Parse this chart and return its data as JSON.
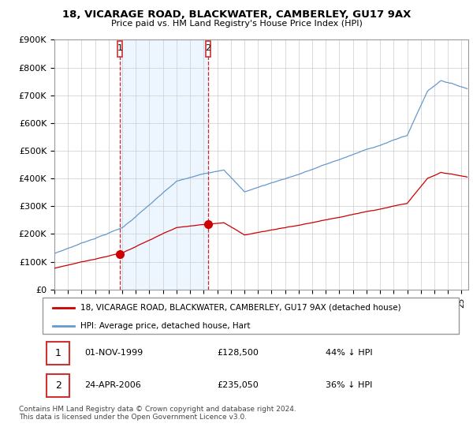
{
  "title": "18, VICARAGE ROAD, BLACKWATER, CAMBERLEY, GU17 9AX",
  "subtitle": "Price paid vs. HM Land Registry's House Price Index (HPI)",
  "ylim": [
    0,
    900000
  ],
  "yticks": [
    0,
    100000,
    200000,
    300000,
    400000,
    500000,
    600000,
    700000,
    800000,
    900000
  ],
  "xmin": 1995.0,
  "xmax": 2025.5,
  "sale1_x": 1999.833,
  "sale1_y": 128500,
  "sale2_x": 2006.31,
  "sale2_y": 235050,
  "legend_red": "18, VICARAGE ROAD, BLACKWATER, CAMBERLEY, GU17 9AX (detached house)",
  "legend_blue": "HPI: Average price, detached house, Hart",
  "footnote": "Contains HM Land Registry data © Crown copyright and database right 2024.\nThis data is licensed under the Open Government Licence v3.0.",
  "red_color": "#cc0000",
  "blue_color": "#6699cc",
  "blue_fill": "#ddeeff",
  "background_color": "#ffffff",
  "grid_color": "#cccccc"
}
